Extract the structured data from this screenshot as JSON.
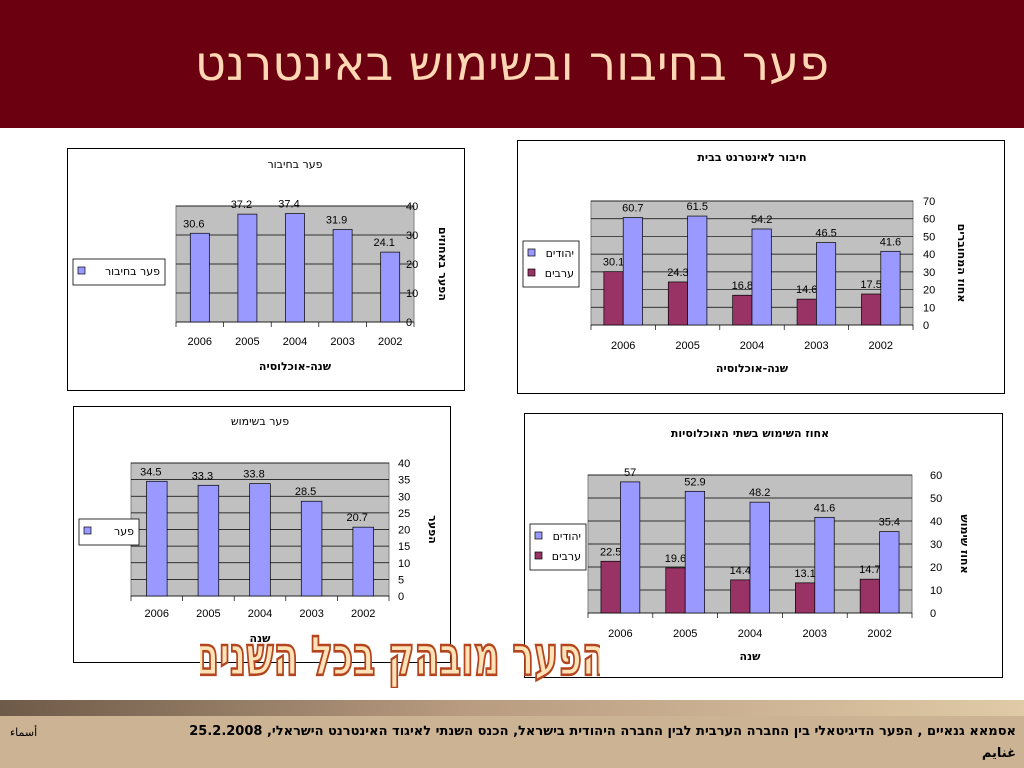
{
  "slide": {
    "title": "פער בחיבור ובשימוש באינטרנט",
    "big_caption": "הפער מובהק בכל השנים",
    "footer_text": "אסמאא גנאיים , הפער הדיגיטאלי בין החברה הערבית לבין החברה היהודית בישראל, הכנס השנתי לאיגוד האינטרנט הישראלי, 25.2.2008",
    "footer_tail": "غنايم",
    "footer_corner": "أسماء"
  },
  "colors": {
    "header_bg": "#6b0010",
    "title_text": "#ffd7b4",
    "bar_blue": "#9999ff",
    "bar_maroon": "#993366",
    "plot_bg": "#c0c0c0",
    "caption_fill": "#ffe3b8",
    "caption_stroke": "#b4451e"
  },
  "chart_data": [
    {
      "id": "gap-connection",
      "type": "bar",
      "title": "פער בחיבור",
      "categories": [
        "2006",
        "2005",
        "2004",
        "2003",
        "2002"
      ],
      "series": [
        {
          "name": "פער בחיבור",
          "color": "#9999ff",
          "values": [
            30.6,
            37.2,
            37.4,
            31.9,
            24.1
          ]
        }
      ],
      "xlabel": "שנה-אוכלוסיה",
      "ylabel": "הפער באחוזים",
      "ylim": [
        0,
        40
      ],
      "yticks": [
        0,
        10,
        20,
        30,
        40
      ],
      "grid": true,
      "legend": "left"
    },
    {
      "id": "home-connection",
      "type": "bar",
      "title": "חיבור לאינטרנט בבית",
      "categories": [
        "2006",
        "2005",
        "2004",
        "2003",
        "2002"
      ],
      "series": [
        {
          "name": "יהודים",
          "color": "#9999ff",
          "values": [
            60.7,
            61.5,
            54.2,
            46.5,
            41.6
          ]
        },
        {
          "name": "ערבים",
          "color": "#993366",
          "values": [
            30.1,
            24.3,
            16.8,
            14.6,
            17.5
          ]
        }
      ],
      "xlabel": "שנה-אוכלוסיה",
      "ylabel": "אחוז המחוברים",
      "ylim": [
        0,
        70
      ],
      "yticks": [
        0,
        10,
        20,
        30,
        40,
        50,
        60,
        70
      ],
      "grid": true,
      "legend": "left"
    },
    {
      "id": "gap-usage",
      "type": "bar",
      "title": "פער בשימוש",
      "categories": [
        "2006",
        "2005",
        "2004",
        "2003",
        "2002"
      ],
      "series": [
        {
          "name": "פער",
          "color": "#9999ff",
          "values": [
            34.5,
            33.3,
            33.8,
            28.5,
            20.7
          ]
        }
      ],
      "xlabel": "שנה",
      "ylabel": "הפער",
      "ylim": [
        0,
        40
      ],
      "yticks": [
        0,
        5,
        10,
        15,
        20,
        25,
        30,
        35,
        40
      ],
      "grid": true,
      "legend": "left"
    },
    {
      "id": "usage-both",
      "type": "bar",
      "title": "אחוז השימוש בשתי האוכלוסיות",
      "categories": [
        "2006",
        "2005",
        "2004",
        "2003",
        "2002"
      ],
      "series": [
        {
          "name": "יהודים",
          "color": "#9999ff",
          "values": [
            57,
            52.9,
            48.2,
            41.6,
            35.4
          ]
        },
        {
          "name": "ערבים",
          "color": "#993366",
          "values": [
            22.5,
            19.6,
            14.4,
            13.1,
            14.7
          ]
        }
      ],
      "xlabel": "שנה",
      "ylabel": "אחוז שימוש",
      "ylim": [
        0,
        60
      ],
      "yticks": [
        0,
        10,
        20,
        30,
        40,
        50,
        60
      ],
      "grid": true,
      "legend": "left"
    }
  ]
}
